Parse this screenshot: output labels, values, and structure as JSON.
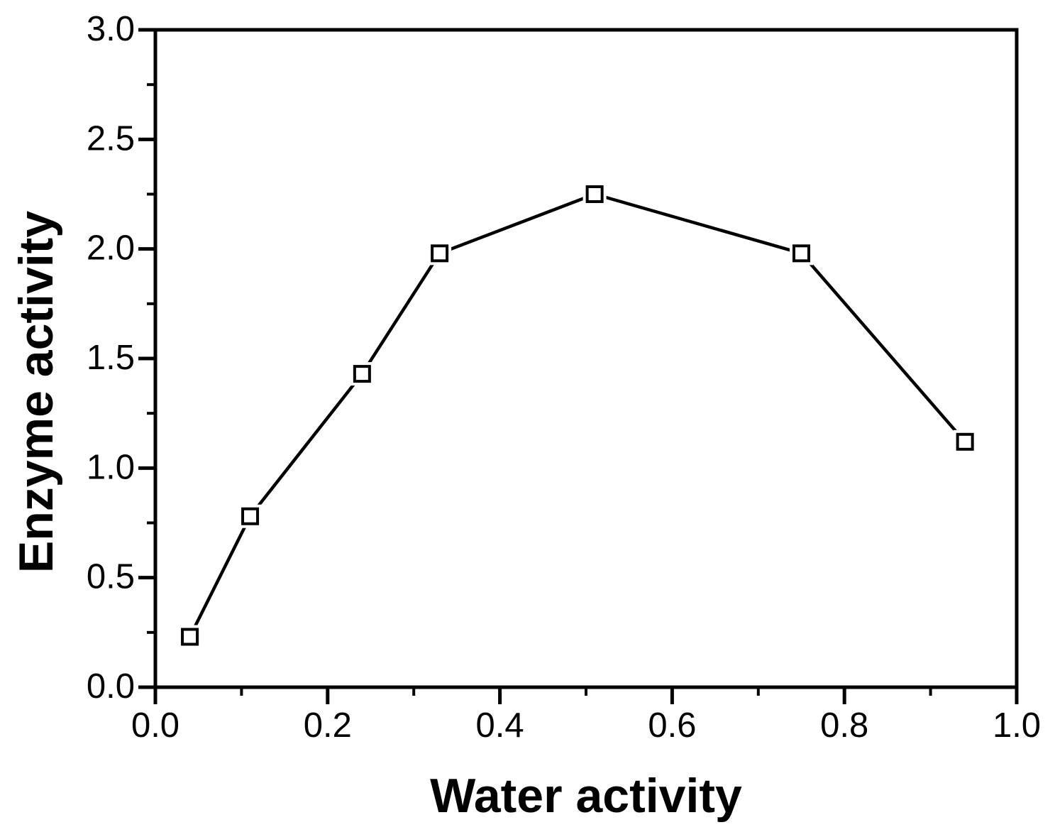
{
  "figure": {
    "background_color": "#ffffff",
    "axis_color": "#000000"
  },
  "chart_data": {
    "type": "line",
    "title": "",
    "xlabel": "Water activity",
    "ylabel": "Enzyme activity",
    "xlim": [
      0.0,
      1.0
    ],
    "ylim": [
      0.0,
      3.0
    ],
    "x": [
      0.04,
      0.11,
      0.24,
      0.33,
      0.51,
      0.75,
      0.94
    ],
    "series": [
      {
        "name": "enzyme-activity",
        "values": [
          0.23,
          0.78,
          1.43,
          1.98,
          2.25,
          1.98,
          1.12
        ],
        "line_color": "#000000",
        "marker": "open-square",
        "marker_fill": "#ffffff",
        "marker_edge_color": "#000000"
      }
    ],
    "x_major_ticks": [
      0.0,
      0.2,
      0.4,
      0.6,
      0.8,
      1.0
    ],
    "x_major_tick_labels": [
      "0.0",
      "0.2",
      "0.4",
      "0.6",
      "0.8",
      "1.0"
    ],
    "x_minor_ticks": [
      0.1,
      0.3,
      0.5,
      0.7,
      0.9
    ],
    "y_major_ticks": [
      0.0,
      0.5,
      1.0,
      1.5,
      2.0,
      2.5,
      3.0
    ],
    "y_major_tick_labels": [
      "0.0",
      "0.5",
      "1.0",
      "1.5",
      "2.0",
      "2.5",
      "3.0"
    ],
    "y_minor_ticks": [
      0.25,
      0.75,
      1.25,
      1.75,
      2.25,
      2.75
    ],
    "grid": "off",
    "legend": "none"
  }
}
